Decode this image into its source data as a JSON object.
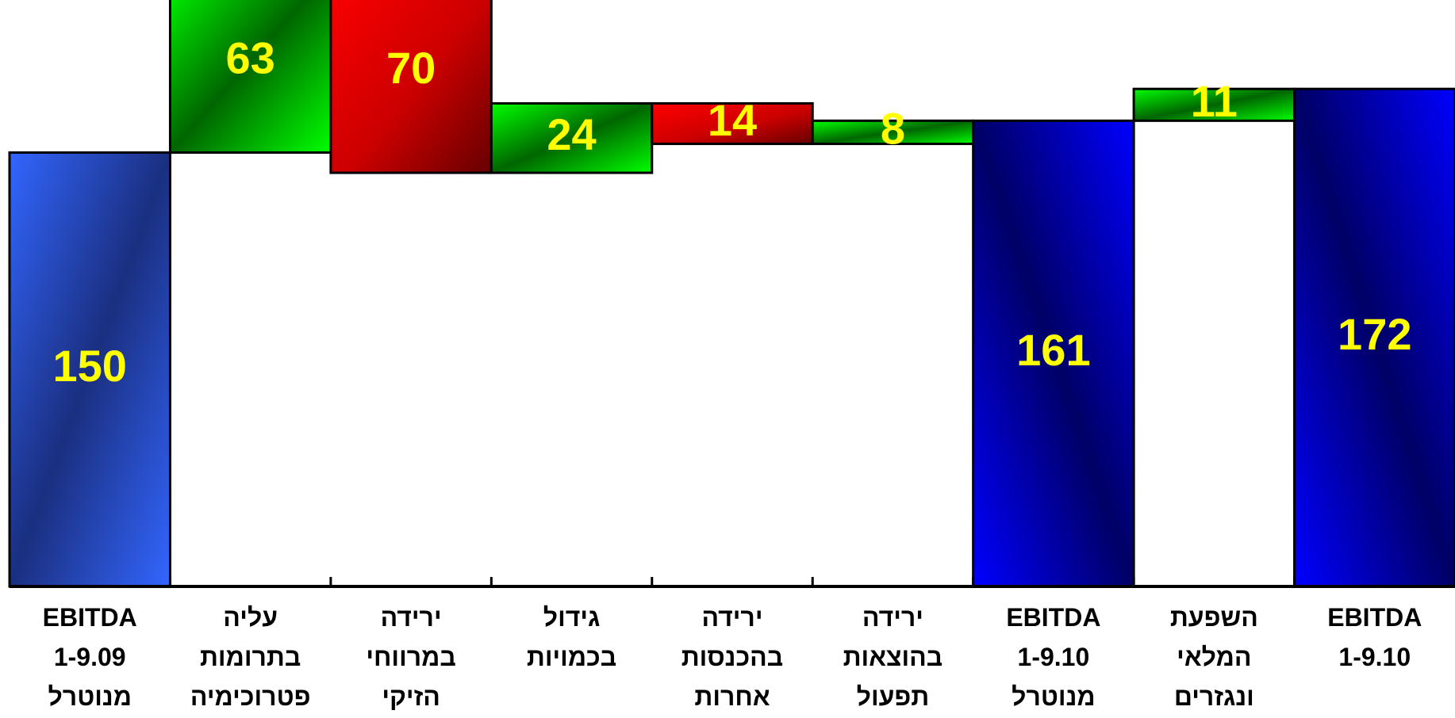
{
  "chart_data": {
    "type": "bar",
    "subtype": "waterfall",
    "categories": [
      [
        "EBITDA",
        "1-9.09",
        "מנוטרל"
      ],
      [
        "עליה",
        "בתרומות",
        "פטרוכימיה"
      ],
      [
        "ירידה",
        "במרווחי",
        "הזיקי"
      ],
      [
        "גידול",
        "בכמויות"
      ],
      [
        "ירידה",
        "בהכנסות",
        "אחרות"
      ],
      [
        "ירידה",
        "בהוצאות",
        "תפעול"
      ],
      [
        "EBITDA",
        "1-9.10",
        "מנוטרל"
      ],
      [
        "השפעת",
        "המלאי",
        "ונגזרים"
      ],
      [
        "EBITDA",
        "1-9.10"
      ]
    ],
    "values": [
      150,
      63,
      70,
      24,
      14,
      8,
      161,
      11,
      172
    ],
    "value_labels": [
      "150",
      "63",
      "70",
      "24",
      "14",
      "8",
      "161",
      "11",
      "172"
    ],
    "kinds": [
      "total",
      "increase",
      "decrease",
      "increase",
      "decrease",
      "increase",
      "total",
      "increase",
      "total"
    ],
    "colors": {
      "total_first": "#3366ff",
      "total": "#0000ee",
      "total_dark": "#000066",
      "increase": "#00ff00",
      "increase_dark": "#006600",
      "decrease": "#ff0000",
      "decrease_dark": "#660000",
      "label": "#ffff00"
    },
    "title": "",
    "xlabel": "",
    "ylabel": "",
    "ylim": [
      0,
      200
    ],
    "grid": false,
    "legend": "none"
  }
}
